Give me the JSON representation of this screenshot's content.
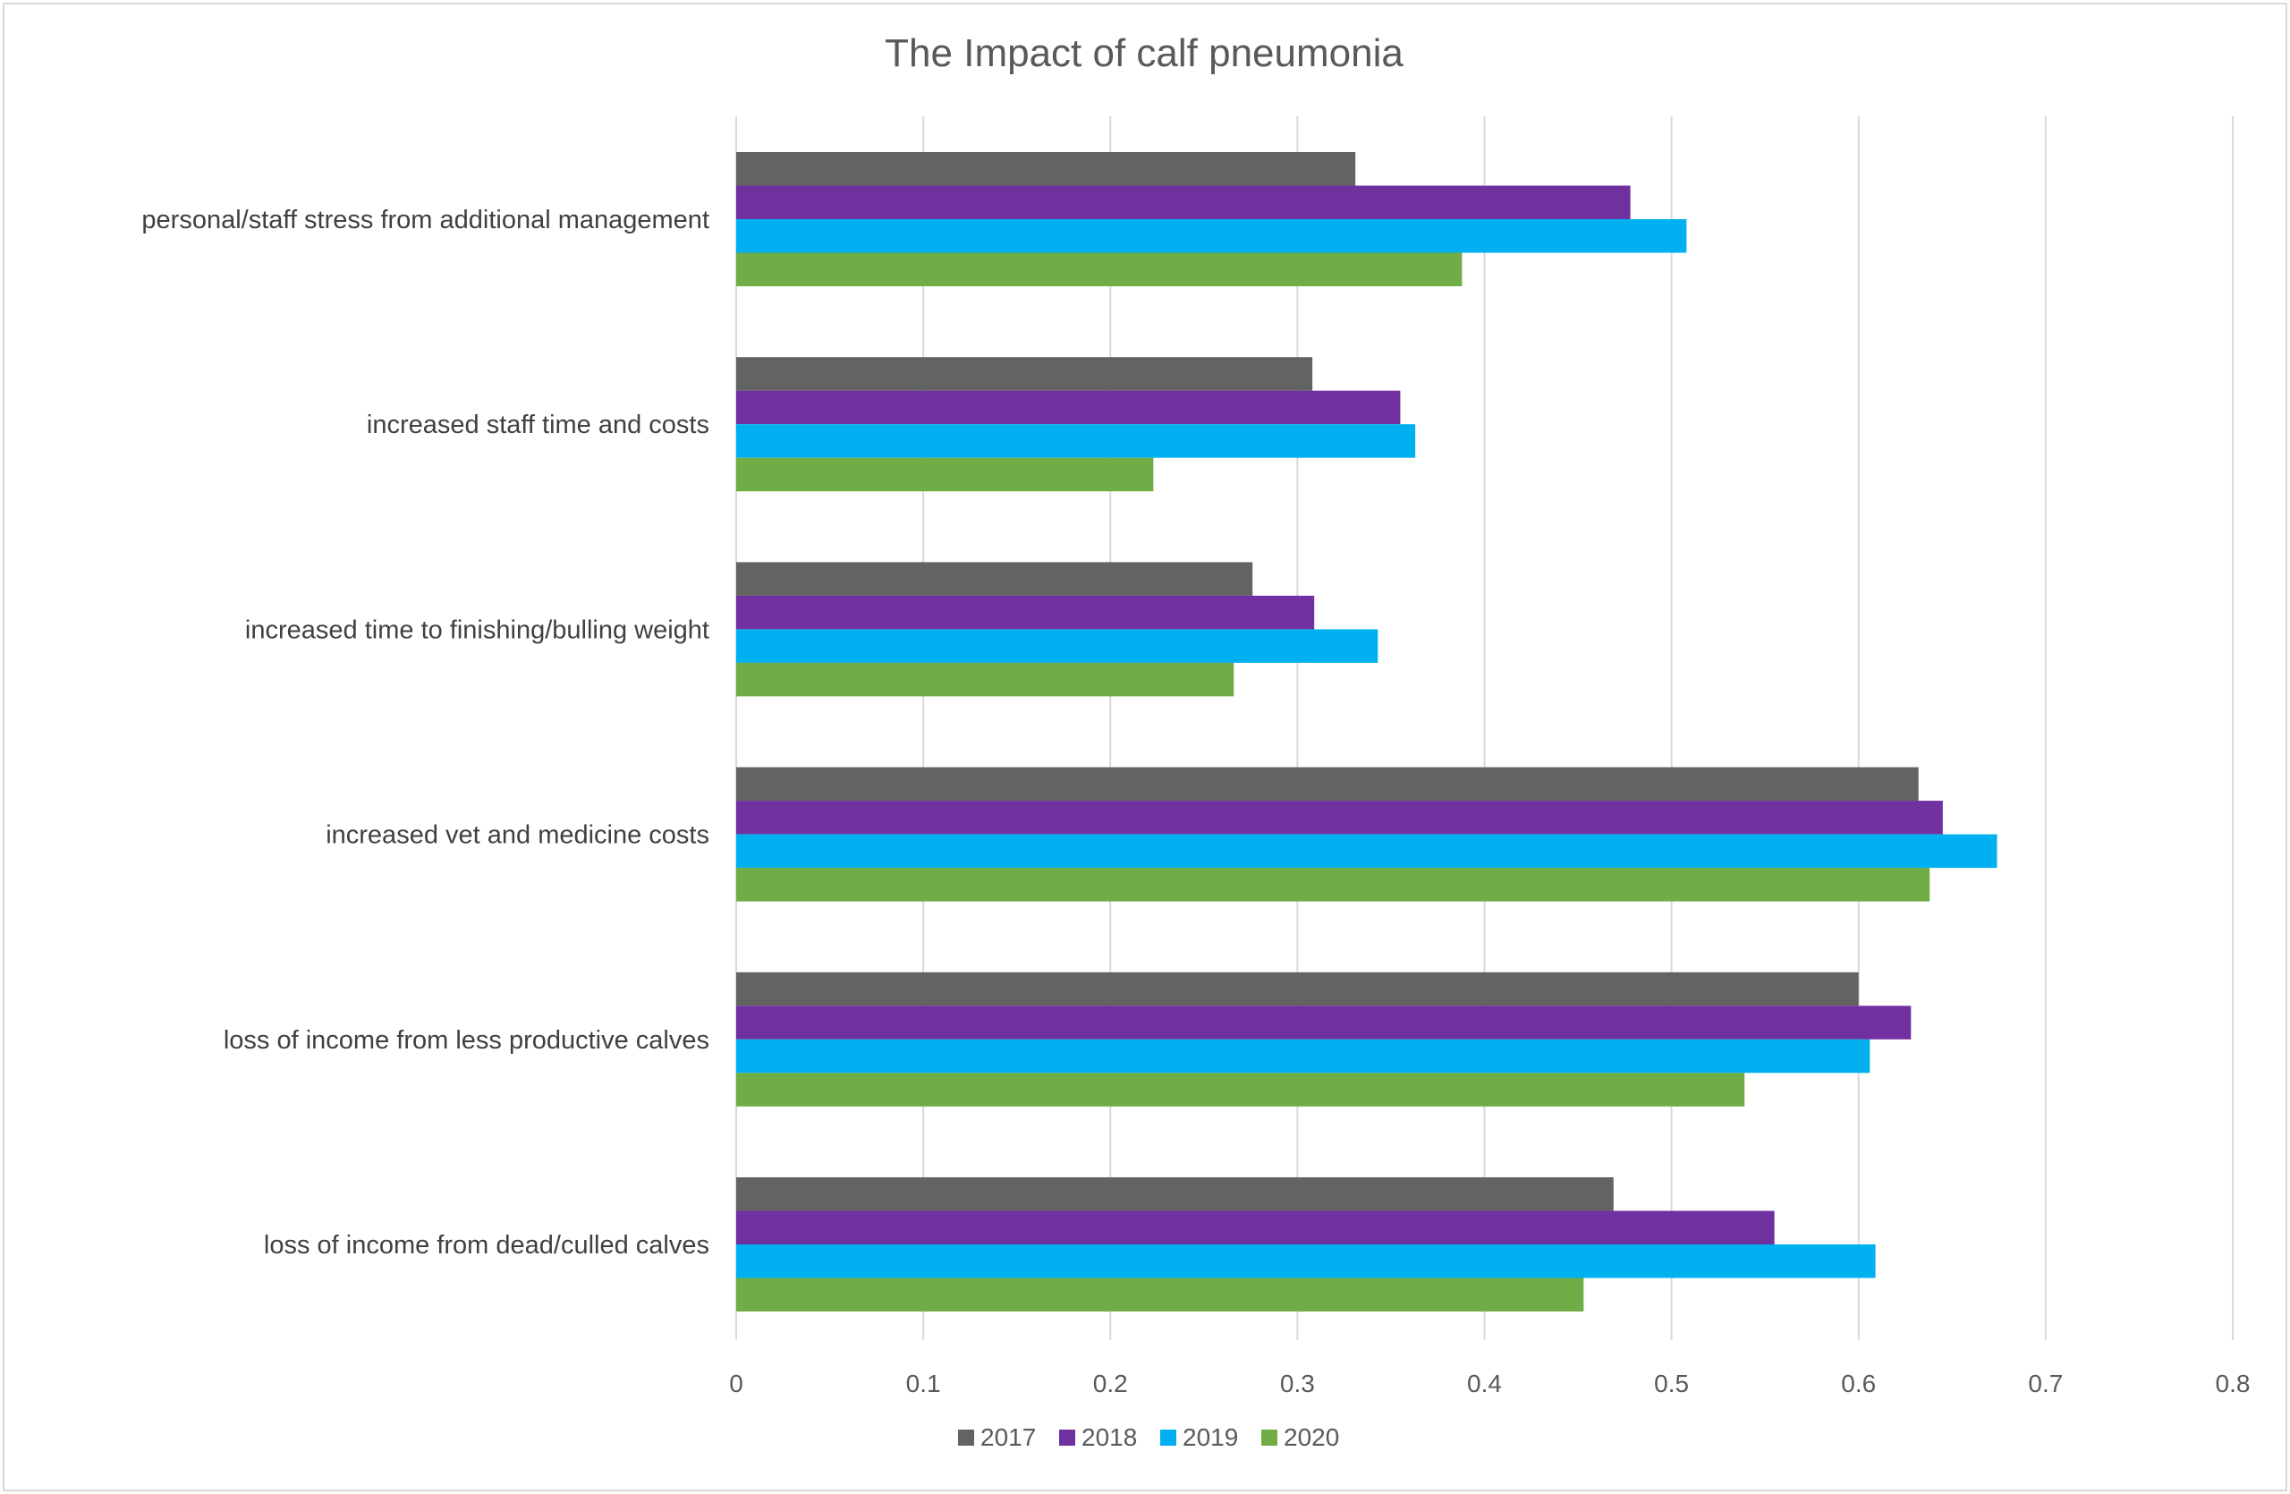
{
  "chart_data": {
    "type": "bar",
    "orientation": "horizontal",
    "title": "The Impact of calf pneumonia",
    "xlabel": "",
    "ylabel": "",
    "categories": [
      "personal/staff stress from additional management",
      "increased staff time and costs",
      "increased time to finishing/bulling weight",
      "increased vet and medicine costs",
      "loss of income from less productive calves",
      "loss of income from dead/culled calves"
    ],
    "series": [
      {
        "name": "2017",
        "color": "#636363",
        "values": [
          0.331,
          0.308,
          0.276,
          0.632,
          0.6,
          0.469
        ]
      },
      {
        "name": "2018",
        "color": "#7030A0",
        "values": [
          0.478,
          0.355,
          0.309,
          0.645,
          0.628,
          0.555
        ]
      },
      {
        "name": "2019",
        "color": "#00B0F0",
        "values": [
          0.508,
          0.363,
          0.343,
          0.674,
          0.606,
          0.609
        ]
      },
      {
        "name": "2020",
        "color": "#70AD47",
        "values": [
          0.388,
          0.223,
          0.266,
          0.638,
          0.539,
          0.453
        ]
      }
    ],
    "xlim": [
      0,
      0.8
    ],
    "xticks": [
      "0",
      "0.1",
      "0.2",
      "0.3",
      "0.4",
      "0.5",
      "0.6",
      "0.7",
      "0.8"
    ],
    "grid": true,
    "legend_position": "bottom"
  }
}
